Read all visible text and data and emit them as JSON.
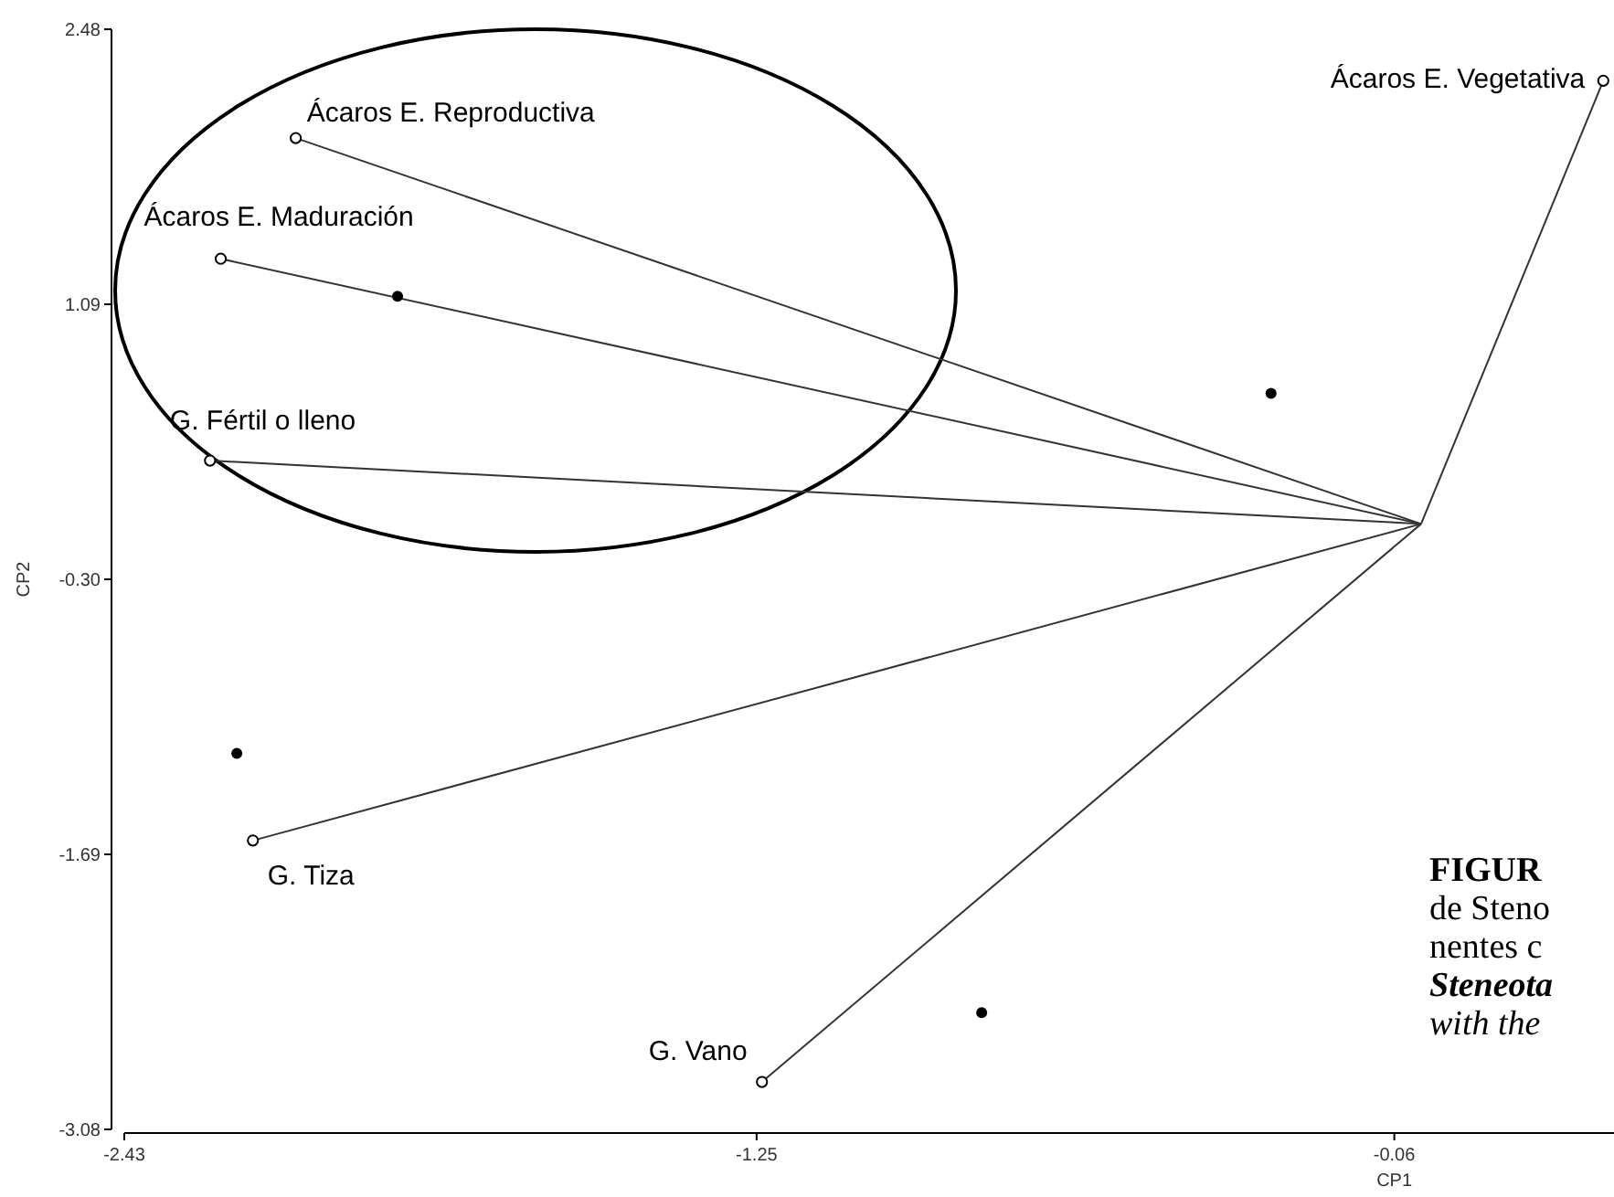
{
  "chart_data": {
    "type": "line",
    "xlabel": "CP1",
    "ylabel": "CP2",
    "xlim": [
      -2.43,
      0.35
    ],
    "ylim": [
      -3.08,
      2.48
    ],
    "xticks": [
      -2.43,
      -1.25,
      -0.06
    ],
    "yticks": [
      -3.08,
      -1.69,
      {
        "value": -0.3,
        "label": "-0.30"
      },
      1.09,
      2.48
    ],
    "grid": false,
    "marker": "circle",
    "line_style": "solid",
    "series": [
      {
        "name": "Ácaros E. Vegetativa",
        "color": "#333333",
        "x": [
          -0.01,
          0.33
        ],
        "values": [
          -0.02,
          2.22
        ]
      },
      {
        "name": "Ácaros E. Reproductiva",
        "color": "#333333",
        "x": [
          -0.01,
          -2.11
        ],
        "values": [
          -0.02,
          1.93
        ]
      },
      {
        "name": "Ácaros E. Maduración",
        "color": "#333333",
        "x": [
          -0.01,
          -2.25
        ],
        "values": [
          -0.02,
          1.32
        ]
      },
      {
        "name": "G. Fértil o lleno",
        "color": "#333333",
        "x": [
          -0.01,
          -2.27
        ],
        "values": [
          -0.02,
          0.3
        ]
      },
      {
        "name": "G. Tiza",
        "color": "#333333",
        "x": [
          -0.01,
          -2.19
        ],
        "values": [
          -0.02,
          -1.62
        ]
      },
      {
        "name": "G. Vano",
        "color": "#333333",
        "x": [
          -0.01,
          -1.24
        ],
        "values": [
          -0.02,
          -2.84
        ]
      },
      {
        "type": "scatter",
        "color": "#000000",
        "x": [
          -1.92,
          -0.29,
          -2.22,
          -0.83
        ],
        "values": [
          1.13,
          0.64,
          -1.18,
          -2.49
        ]
      }
    ],
    "annotations": [
      "FIGUR",
      "de Steno",
      "nentes c",
      "Steneota",
      "with the"
    ]
  }
}
